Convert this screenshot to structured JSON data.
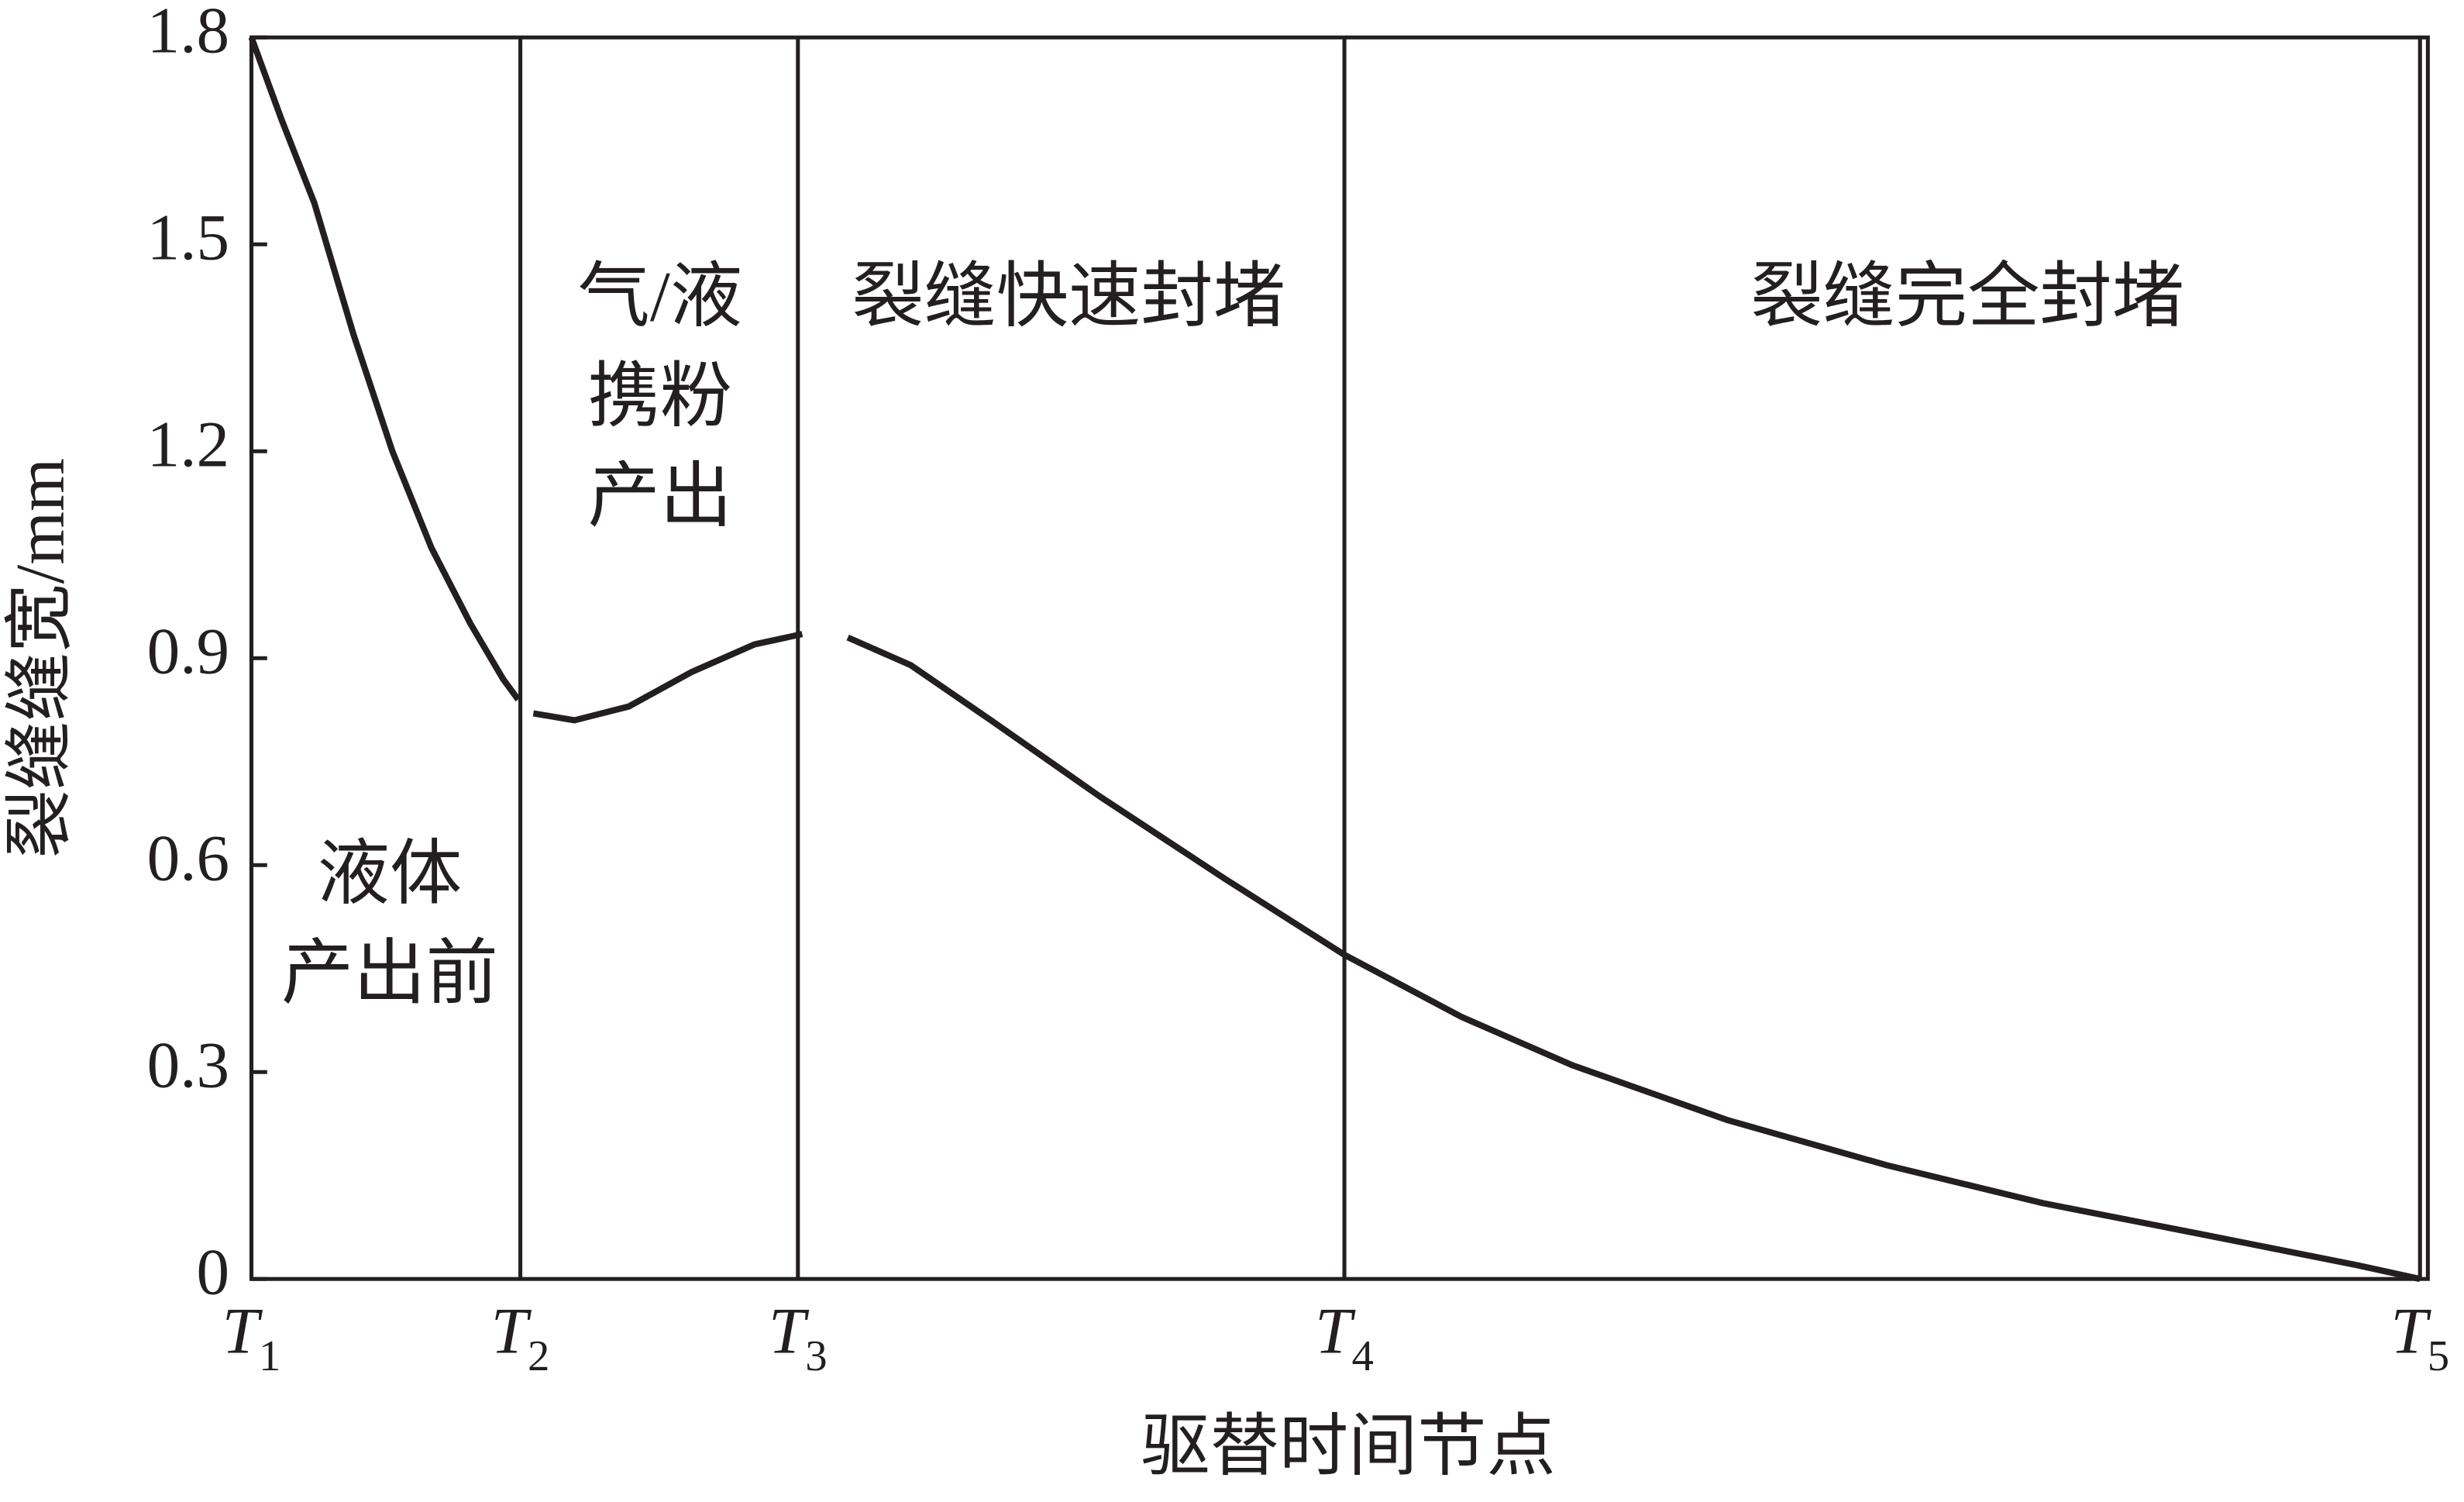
{
  "chart_data": {
    "type": "line",
    "y_label": "裂缝缝宽/mm",
    "x_label": "驱替时间节点",
    "xlim": [
      0,
      100
    ],
    "xticks": [
      {
        "value": 0,
        "label": "T1"
      },
      {
        "value": 12.4,
        "label": "T2"
      },
      {
        "value": 25.2,
        "label": "T3"
      },
      {
        "value": 50.4,
        "label": "T4"
      },
      {
        "value": 100,
        "label": "T5"
      }
    ],
    "xgrid": true,
    "ylim": [
      0,
      1.8
    ],
    "yticks": [
      0,
      0.3,
      0.6,
      0.9,
      1.2,
      1.5,
      1.8
    ],
    "x": [
      0,
      1.4,
      2.9,
      4.7,
      6.5,
      8.3,
      10.1,
      11.6,
      12.3,
      12.7,
      13.0,
      14.9,
      17.4,
      20.3,
      23.2,
      25.4,
      26.4,
      27.5,
      30.4,
      34.1,
      39.1,
      44.9,
      50.4,
      55.8,
      60.9,
      68.1,
      75.4,
      82.6,
      89.9,
      97.1,
      100
    ],
    "series": [
      {
        "color": "#231f20",
        "values": [
          1.8,
          1.68,
          1.56,
          1.37,
          1.2,
          1.06,
          0.95,
          0.87,
          0.84,
          null,
          0.82,
          0.81,
          0.83,
          0.88,
          0.92,
          0.935,
          null,
          0.93,
          0.89,
          0.81,
          0.7,
          0.58,
          0.47,
          0.38,
          0.31,
          0.23,
          0.165,
          0.11,
          0.065,
          0.02,
          0
        ]
      }
    ],
    "annotations": [
      [
        "液体",
        "产出前"
      ],
      [
        "气/液",
        "携粉",
        "产出"
      ],
      [
        "裂缝快速封堵"
      ],
      [
        "裂缝完全封堵"
      ]
    ]
  }
}
